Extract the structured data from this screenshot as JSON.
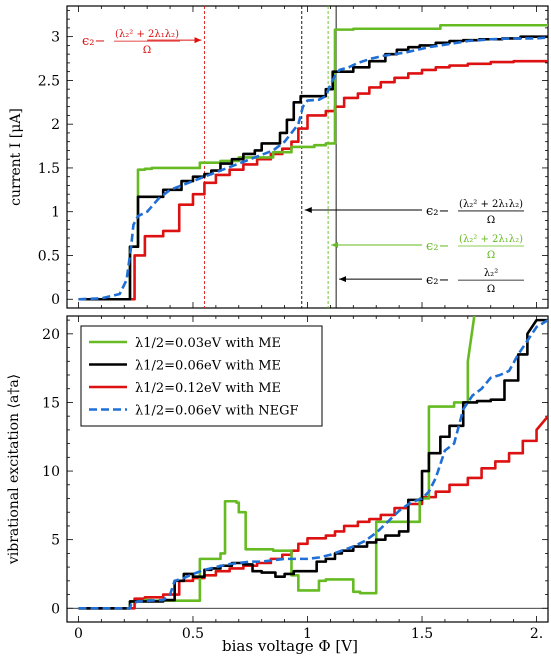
{
  "chart_data": [
    {
      "type": "line",
      "panel": "top",
      "ylabel": "current I [μA]",
      "xlim": [
        -0.05,
        2.05
      ],
      "ylim": [
        -0.1,
        3.35
      ],
      "yticks": [
        "0",
        "0.5",
        "1",
        "1.5",
        "2",
        "2.5",
        "3"
      ],
      "grid": false,
      "colors": {
        "green": "#66bb22",
        "black": "#000000",
        "red": "#dd1111",
        "blue": "#1f6fd6"
      },
      "vlines": [
        {
          "x": 0.55,
          "color": "#dd1111",
          "style": "dashed"
        },
        {
          "x": 0.975,
          "color": "#000000",
          "style": "dashed"
        },
        {
          "x": 1.09,
          "color": "#66bb22",
          "style": "dashed"
        },
        {
          "x": 1.125,
          "color": "#000000",
          "style": "solid"
        }
      ],
      "annotations": [
        {
          "label_main": "ϵ₂−",
          "num": "(λ₂² + 2λ₁λ₂)",
          "den": "Ω",
          "color": "#dd1111",
          "arrow_from_x": 0.3,
          "arrow_to_x": 0.55,
          "y": 2.96
        },
        {
          "label_main": "ϵ₂−",
          "num": "(λ₂² + 2λ₁λ₂)",
          "den": "Ω",
          "color": "#000000",
          "arrow_from_x": 1.5,
          "arrow_to_x": 0.975,
          "y": 1.02
        },
        {
          "label_main": "ϵ₂−",
          "num": "(λ₂² + 2λ₁λ₂)",
          "den": "Ω",
          "color": "#66bb22",
          "arrow_from_x": 1.5,
          "arrow_to_x": 1.09,
          "y": 0.62
        },
        {
          "label_main": "ϵ₂−",
          "num": "λ₂²",
          "den": "Ω",
          "color": "#000000",
          "arrow_from_x": 1.5,
          "arrow_to_x": 1.125,
          "y": 0.23
        }
      ],
      "series": [
        {
          "color": "#66bb22",
          "style": "solid",
          "x": [
            0,
            0.2,
            0.225,
            0.225,
            0.26,
            0.26,
            0.29,
            0.29,
            0.32,
            0.32,
            0.53,
            0.53,
            0.62,
            0.62,
            0.7,
            0.7,
            0.85,
            0.85,
            0.93,
            0.93,
            1.03,
            1.03,
            1.08,
            1.08,
            1.12,
            1.12,
            1.2,
            1.2,
            1.58,
            1.58,
            2.05
          ],
          "y": [
            0,
            0,
            0,
            0.6,
            0.6,
            1.48,
            1.48,
            1.49,
            1.49,
            1.5,
            1.5,
            1.56,
            1.56,
            1.58,
            1.58,
            1.62,
            1.62,
            1.68,
            1.68,
            1.74,
            1.74,
            1.76,
            1.76,
            1.78,
            1.78,
            3.08,
            3.08,
            3.09,
            3.09,
            3.13,
            3.13
          ]
        },
        {
          "color": "#000000",
          "style": "solid",
          "x": [
            0,
            0.2,
            0.225,
            0.225,
            0.26,
            0.26,
            0.37,
            0.37,
            0.45,
            0.45,
            0.5,
            0.5,
            0.55,
            0.55,
            0.58,
            0.58,
            0.62,
            0.62,
            0.67,
            0.67,
            0.72,
            0.72,
            0.77,
            0.77,
            0.8,
            0.8,
            0.88,
            0.88,
            0.91,
            0.91,
            0.94,
            0.94,
            0.97,
            0.97,
            1.08,
            1.08,
            1.11,
            1.11,
            1.14,
            1.14,
            1.2,
            1.2,
            1.27,
            1.27,
            1.34,
            1.34,
            1.39,
            1.39,
            1.44,
            1.44,
            1.49,
            1.49,
            1.56,
            1.56,
            1.62,
            1.62,
            1.68,
            1.68,
            1.75,
            1.75,
            1.85,
            1.85,
            1.93,
            1.93,
            2.05
          ],
          "y": [
            0,
            0,
            0,
            0.6,
            0.6,
            1.17,
            1.17,
            1.25,
            1.25,
            1.35,
            1.35,
            1.4,
            1.4,
            1.43,
            1.43,
            1.47,
            1.47,
            1.55,
            1.55,
            1.6,
            1.6,
            1.66,
            1.66,
            1.7,
            1.7,
            1.78,
            1.78,
            1.9,
            1.9,
            2.05,
            2.05,
            2.25,
            2.25,
            2.32,
            2.32,
            2.4,
            2.4,
            2.6,
            2.6,
            2.6,
            2.6,
            2.65,
            2.65,
            2.72,
            2.72,
            2.8,
            2.8,
            2.85,
            2.85,
            2.88,
            2.88,
            2.9,
            2.9,
            2.93,
            2.93,
            2.95,
            2.95,
            2.96,
            2.96,
            2.97,
            2.97,
            2.98,
            2.98,
            3.0,
            3.0
          ]
        },
        {
          "color": "#dd1111",
          "style": "solid",
          "x": [
            0,
            0.2,
            0.245,
            0.245,
            0.29,
            0.29,
            0.37,
            0.37,
            0.44,
            0.44,
            0.5,
            0.5,
            0.55,
            0.55,
            0.6,
            0.6,
            0.66,
            0.66,
            0.72,
            0.72,
            0.78,
            0.78,
            0.84,
            0.84,
            0.89,
            0.89,
            0.93,
            0.93,
            0.96,
            0.96,
            1.0,
            1.0,
            1.08,
            1.08,
            1.12,
            1.12,
            1.16,
            1.16,
            1.22,
            1.22,
            1.27,
            1.27,
            1.32,
            1.32,
            1.38,
            1.38,
            1.44,
            1.44,
            1.5,
            1.5,
            1.56,
            1.56,
            1.62,
            1.62,
            1.7,
            1.7,
            1.8,
            1.8,
            1.9,
            1.9,
            2.05
          ],
          "y": [
            0,
            0,
            0,
            0.5,
            0.5,
            0.72,
            0.72,
            0.78,
            0.78,
            1.08,
            1.08,
            1.2,
            1.2,
            1.33,
            1.33,
            1.42,
            1.42,
            1.48,
            1.48,
            1.54,
            1.54,
            1.6,
            1.6,
            1.66,
            1.66,
            1.72,
            1.72,
            1.8,
            1.8,
            1.95,
            1.95,
            2.1,
            2.1,
            2.15,
            2.15,
            2.2,
            2.2,
            2.3,
            2.3,
            2.35,
            2.35,
            2.42,
            2.42,
            2.48,
            2.48,
            2.53,
            2.53,
            2.58,
            2.58,
            2.62,
            2.62,
            2.65,
            2.65,
            2.67,
            2.67,
            2.69,
            2.69,
            2.71,
            2.71,
            2.72,
            2.72
          ]
        },
        {
          "color": "#1f6fd6",
          "style": "dashed",
          "x": [
            0,
            0.1,
            0.18,
            0.21,
            0.23,
            0.24,
            0.26,
            0.3,
            0.35,
            0.4,
            0.45,
            0.5,
            0.55,
            0.6,
            0.65,
            0.7,
            0.75,
            0.8,
            0.85,
            0.9,
            0.93,
            0.96,
            0.98,
            1.0,
            1.05,
            1.08,
            1.1,
            1.12,
            1.14,
            1.18,
            1.22,
            1.28,
            1.33,
            1.38,
            1.43,
            1.48,
            1.53,
            1.58,
            1.63,
            1.7,
            1.8,
            1.9,
            2.0,
            2.05
          ],
          "y": [
            0,
            0.01,
            0.06,
            0.22,
            0.6,
            0.85,
            0.95,
            1.0,
            1.15,
            1.25,
            1.3,
            1.35,
            1.4,
            1.45,
            1.5,
            1.55,
            1.6,
            1.65,
            1.7,
            1.8,
            1.9,
            2.0,
            2.2,
            2.27,
            2.28,
            2.32,
            2.45,
            2.55,
            2.62,
            2.65,
            2.7,
            2.75,
            2.78,
            2.8,
            2.82,
            2.85,
            2.88,
            2.9,
            2.92,
            2.95,
            2.97,
            2.98,
            2.98,
            2.99
          ]
        }
      ]
    },
    {
      "type": "line",
      "panel": "bottom",
      "ylabel": "vibrational excitation ⟨a†a⟩",
      "xlabel": "bias voltage Φ [V]",
      "xlim": [
        -0.05,
        2.05
      ],
      "ylim": [
        -1.0,
        21.3
      ],
      "xticks": [
        "0",
        "0.5",
        "1",
        "1.5",
        "2."
      ],
      "yticks": [
        "0",
        "5",
        "10",
        "15",
        "20"
      ],
      "grid": false,
      "legend_position": "top-left",
      "series": [
        {
          "name": "λ1/2=0.03eV with ME",
          "color": "#66bb22",
          "style": "solid",
          "x": [
            0,
            0.2,
            0.225,
            0.225,
            0.29,
            0.29,
            0.32,
            0.32,
            0.53,
            0.53,
            0.62,
            0.62,
            0.64,
            0.64,
            0.69,
            0.69,
            0.7,
            0.7,
            0.73,
            0.73,
            0.85,
            0.85,
            0.93,
            0.93,
            0.96,
            0.96,
            1.05,
            1.05,
            1.08,
            1.08,
            1.2,
            1.2,
            1.23,
            1.23,
            1.3,
            1.3,
            1.49,
            1.49,
            1.53,
            1.53,
            1.64,
            1.64,
            1.7,
            1.7,
            1.73
          ],
          "y": [
            0,
            0,
            0,
            0.5,
            0.5,
            0.6,
            0.6,
            0.55,
            0.55,
            3.6,
            3.6,
            4.0,
            4.0,
            7.8,
            7.8,
            7.7,
            7.7,
            7.0,
            7.0,
            4.3,
            4.3,
            4.2,
            4.2,
            2.4,
            2.4,
            1.3,
            1.3,
            2.0,
            2.0,
            2.1,
            2.1,
            1.2,
            1.2,
            1.1,
            1.1,
            6.3,
            6.3,
            8.0,
            8.0,
            14.7,
            14.7,
            15.0,
            15.0,
            18.0,
            21.5
          ]
        },
        {
          "name": "λ1/2=0.06eV with ME",
          "color": "#000000",
          "style": "solid",
          "x": [
            0,
            0.2,
            0.225,
            0.225,
            0.26,
            0.26,
            0.37,
            0.37,
            0.42,
            0.42,
            0.46,
            0.46,
            0.5,
            0.5,
            0.55,
            0.55,
            0.58,
            0.58,
            0.62,
            0.62,
            0.67,
            0.67,
            0.72,
            0.72,
            0.76,
            0.76,
            0.8,
            0.8,
            0.86,
            0.86,
            0.9,
            0.9,
            0.94,
            0.94,
            0.98,
            0.98,
            1.04,
            1.04,
            1.08,
            1.08,
            1.12,
            1.12,
            1.15,
            1.15,
            1.2,
            1.2,
            1.26,
            1.26,
            1.3,
            1.3,
            1.34,
            1.34,
            1.4,
            1.4,
            1.44,
            1.44,
            1.5,
            1.5,
            1.53,
            1.53,
            1.58,
            1.58,
            1.62,
            1.62,
            1.68,
            1.68,
            1.74,
            1.74,
            1.8,
            1.8,
            1.86,
            1.86,
            1.92,
            1.92,
            1.96,
            1.96,
            2.0,
            2.05
          ],
          "y": [
            0,
            0,
            0,
            0.5,
            0.5,
            0.5,
            0.5,
            0.6,
            0.6,
            2.0,
            2.0,
            2.5,
            2.5,
            2.3,
            2.3,
            2.8,
            2.8,
            2.9,
            2.9,
            3.1,
            3.1,
            3.3,
            3.3,
            3.2,
            3.2,
            2.7,
            2.7,
            2.6,
            2.6,
            2.3,
            2.3,
            2.5,
            2.5,
            2.7,
            2.7,
            2.7,
            2.7,
            3.4,
            3.4,
            3.6,
            3.6,
            4.0,
            4.0,
            4.2,
            4.2,
            4.5,
            4.5,
            4.8,
            4.8,
            5.0,
            5.0,
            5.3,
            5.3,
            5.6,
            5.6,
            7.9,
            7.9,
            10.0,
            10.0,
            11.3,
            11.3,
            12.5,
            12.5,
            13.3,
            13.3,
            15.0,
            15.0,
            15.1,
            15.1,
            15.2,
            15.2,
            16.6,
            16.6,
            18.5,
            18.5,
            20.0,
            21.0,
            21.0
          ]
        },
        {
          "name": "λ1/2=0.12eV with ME",
          "color": "#dd1111",
          "style": "solid",
          "x": [
            0,
            0.2,
            0.245,
            0.245,
            0.29,
            0.29,
            0.37,
            0.37,
            0.44,
            0.44,
            0.5,
            0.5,
            0.55,
            0.55,
            0.6,
            0.6,
            0.66,
            0.66,
            0.72,
            0.72,
            0.78,
            0.78,
            0.84,
            0.84,
            0.89,
            0.89,
            0.93,
            0.93,
            0.96,
            0.96,
            1.0,
            1.0,
            1.08,
            1.08,
            1.12,
            1.12,
            1.16,
            1.16,
            1.22,
            1.22,
            1.27,
            1.27,
            1.32,
            1.32,
            1.38,
            1.38,
            1.44,
            1.44,
            1.5,
            1.5,
            1.56,
            1.56,
            1.62,
            1.62,
            1.7,
            1.7,
            1.76,
            1.76,
            1.82,
            1.82,
            1.88,
            1.88,
            1.94,
            1.94,
            2.0,
            2.0,
            2.05
          ],
          "y": [
            0,
            0,
            0,
            0.7,
            0.7,
            0.8,
            0.8,
            1.0,
            1.0,
            2.0,
            2.0,
            2.2,
            2.2,
            2.4,
            2.4,
            2.7,
            2.7,
            2.9,
            2.9,
            3.1,
            3.1,
            3.3,
            3.3,
            3.6,
            3.6,
            3.9,
            3.9,
            4.2,
            4.2,
            4.7,
            4.7,
            5.1,
            5.1,
            5.3,
            5.3,
            5.6,
            5.6,
            6.0,
            6.0,
            6.3,
            6.3,
            6.5,
            6.5,
            6.8,
            6.8,
            7.3,
            7.3,
            7.6,
            7.6,
            8.1,
            8.1,
            8.5,
            8.5,
            9.0,
            9.0,
            9.5,
            9.5,
            10.2,
            10.2,
            10.7,
            10.7,
            11.3,
            11.3,
            12.2,
            12.2,
            13.0,
            14.0
          ]
        },
        {
          "name": "λ1/2=0.06eV with NEGF",
          "color": "#1f6fd6",
          "style": "dashed",
          "x": [
            0,
            0.2,
            0.225,
            0.23,
            0.26,
            0.3,
            0.37,
            0.4,
            0.42,
            0.46,
            0.5,
            0.55,
            0.6,
            0.65,
            0.7,
            0.75,
            0.8,
            0.85,
            0.9,
            0.95,
            1.0,
            1.05,
            1.1,
            1.15,
            1.2,
            1.25,
            1.3,
            1.35,
            1.4,
            1.45,
            1.5,
            1.53,
            1.56,
            1.6,
            1.64,
            1.68,
            1.72,
            1.76,
            1.8,
            1.84,
            1.88,
            1.92,
            1.96,
            2.0,
            2.05
          ],
          "y": [
            0,
            0,
            0,
            0.3,
            0.5,
            0.55,
            0.6,
            1.0,
            2.0,
            2.2,
            2.5,
            2.8,
            3.0,
            3.2,
            3.3,
            3.4,
            3.4,
            3.5,
            3.6,
            3.6,
            3.6,
            3.7,
            3.9,
            4.2,
            4.5,
            4.9,
            5.5,
            6.3,
            7.1,
            7.7,
            8.0,
            8.5,
            9.5,
            11.5,
            12.0,
            14.5,
            15.5,
            16.0,
            16.8,
            17.0,
            17.3,
            18.5,
            19.5,
            20.5,
            21.0
          ]
        }
      ]
    }
  ]
}
